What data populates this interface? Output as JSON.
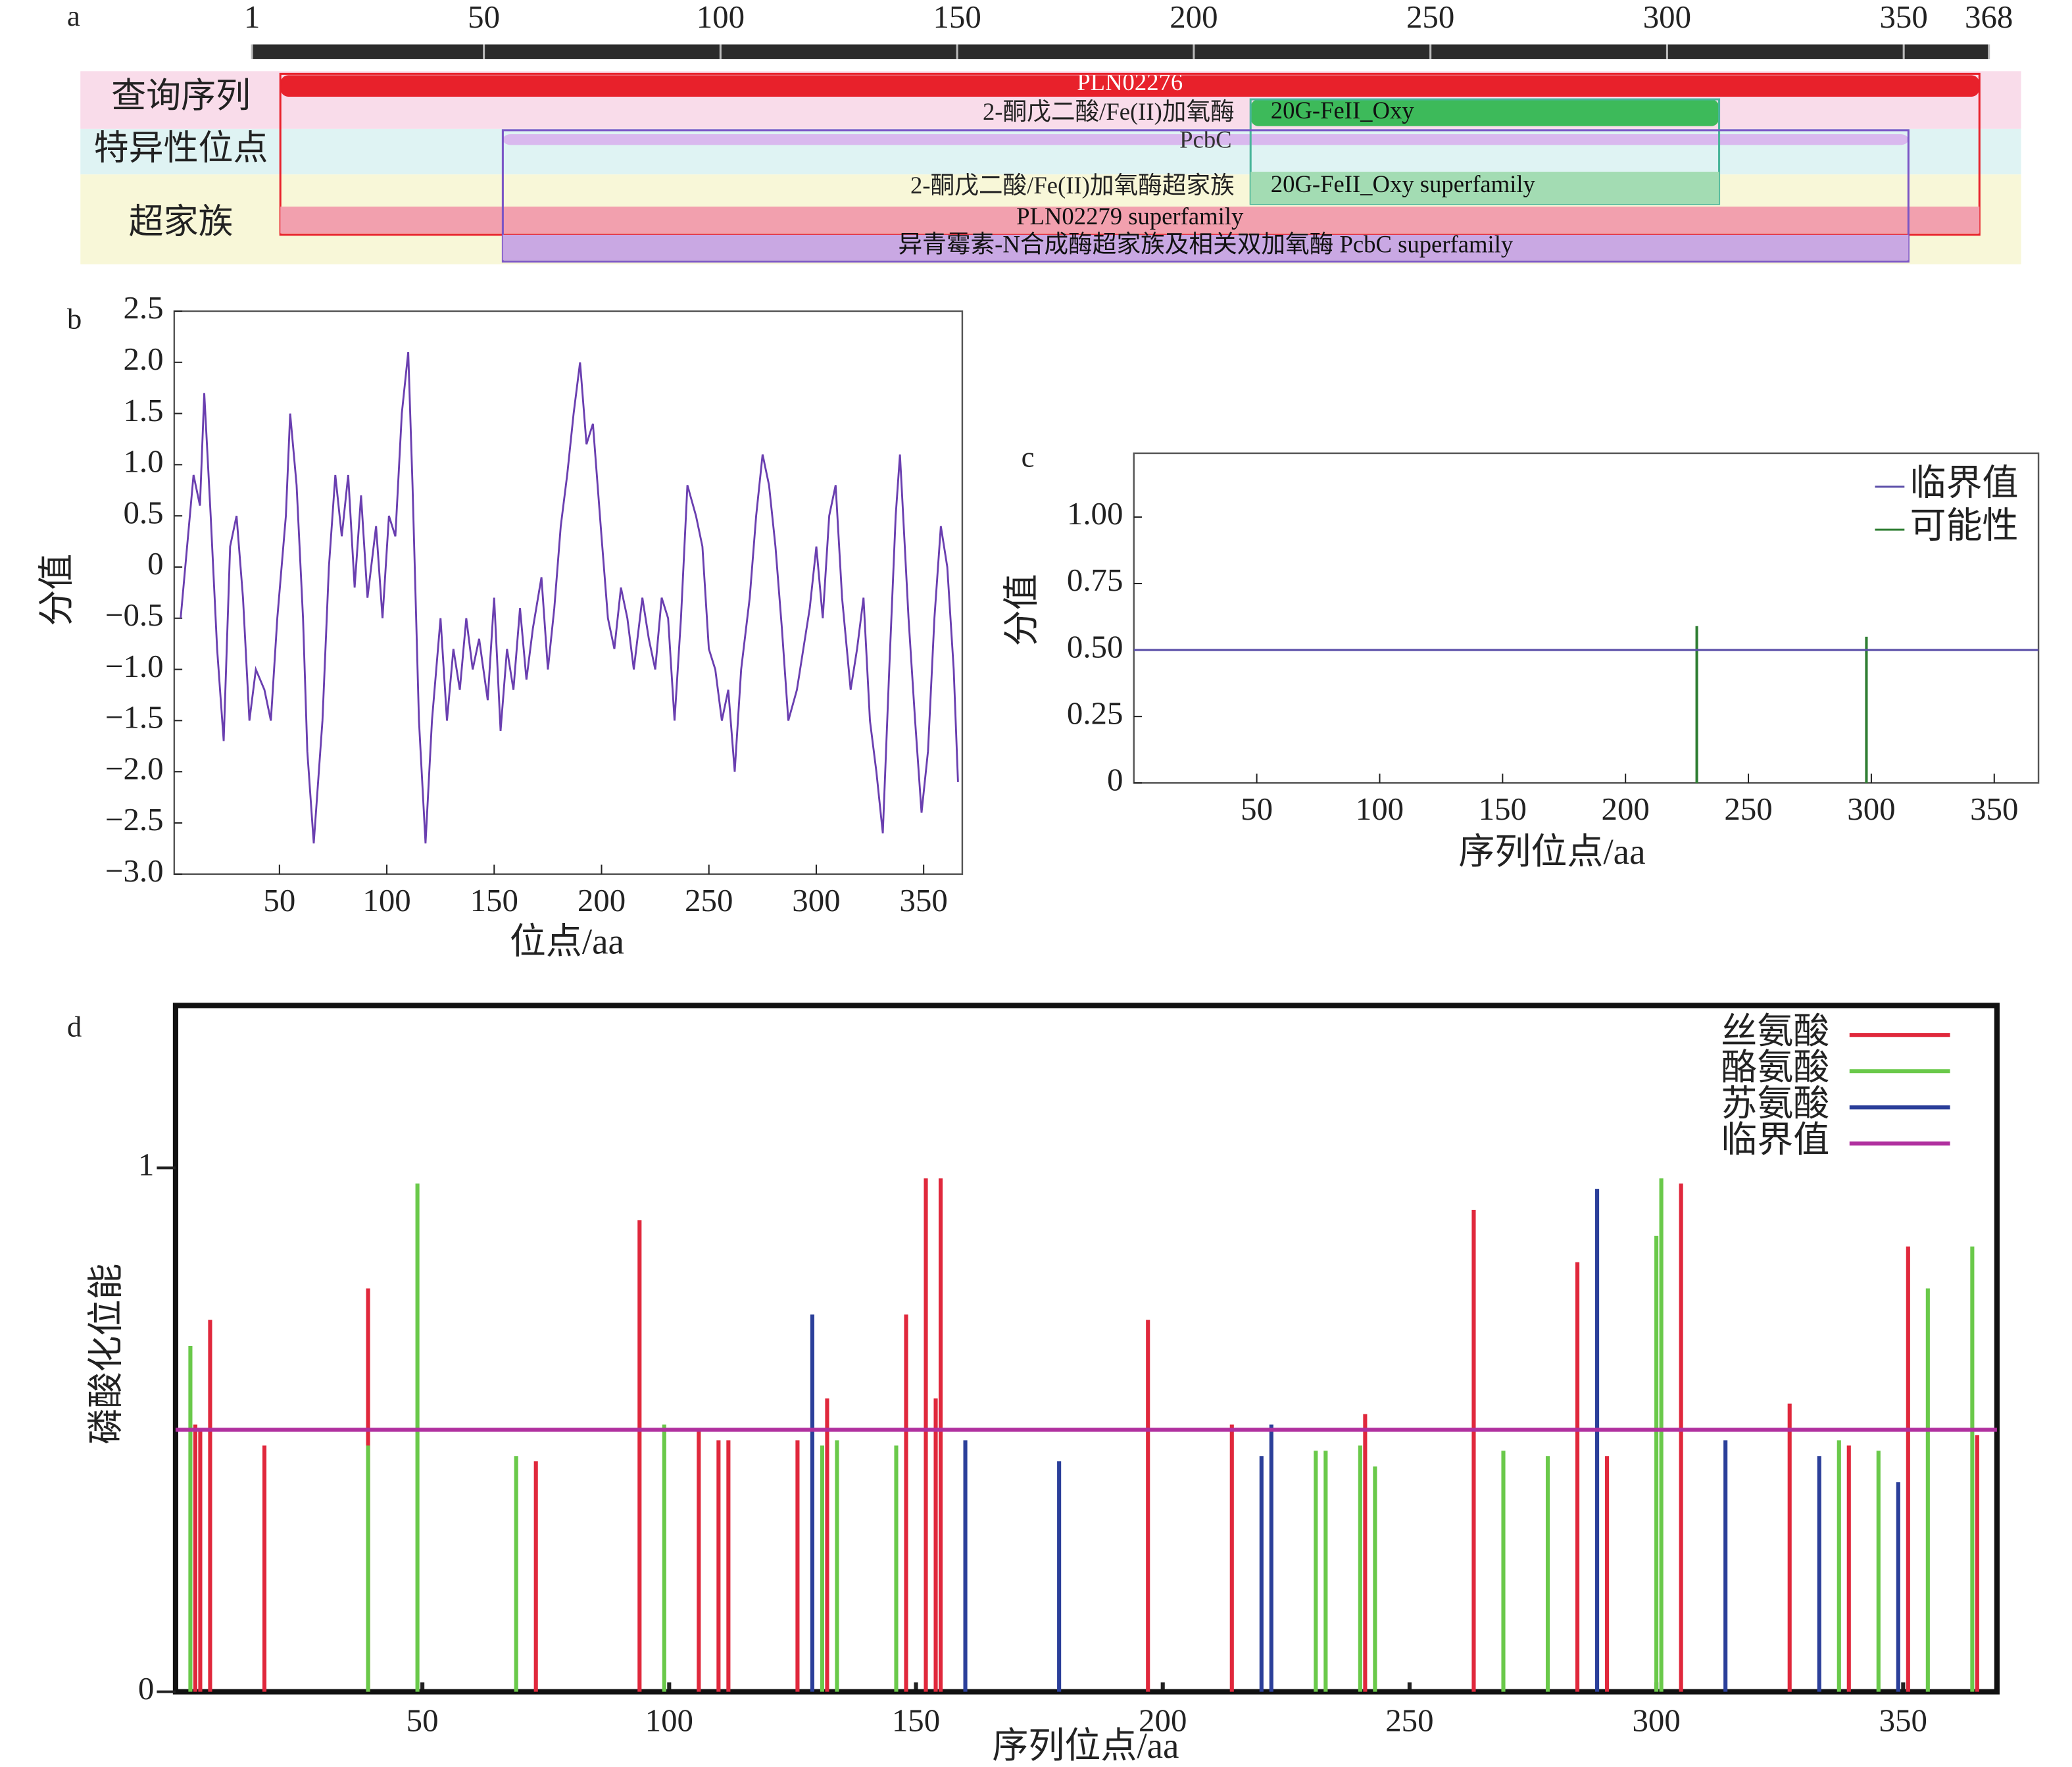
{
  "chart_data": [
    {
      "type": "domain",
      "label": "a",
      "xlim": [
        1,
        368
      ],
      "xticks": [
        1,
        50,
        100,
        150,
        200,
        250,
        300,
        350,
        368
      ],
      "rows": [
        "查询序列",
        "特异性位点",
        "超家族"
      ],
      "features": [
        {
          "name": "PLN02276",
          "start": 7,
          "end": 366,
          "color": "#e8212b"
        },
        {
          "name": "20G-FeII_Oxy",
          "description": "2-酮戊二酸/Fe(II)加氧酶",
          "start": 212,
          "end": 311,
          "color": "#3dba5a"
        },
        {
          "name": "PcbC",
          "start": 54,
          "end": 351,
          "color": "#d9b8ee"
        },
        {
          "name": "20G-FeII_Oxy superfamily",
          "description": "2-酮戊二酸/Fe(II)加氧酶超家族",
          "start": 212,
          "end": 311,
          "color": "#a3dcb3"
        },
        {
          "name": "PLN02279  superfamily",
          "start": 7,
          "end": 366,
          "color": "#f2a0ae"
        },
        {
          "name": "异青霉素-N合成酶超家族及相关双加氧酶  PcbC superfamily",
          "start": 54,
          "end": 351,
          "color": "#c9a8e3"
        }
      ]
    },
    {
      "type": "line",
      "label": "b",
      "xlabel": "位点/aa",
      "ylabel": "分值",
      "color": "#6a3fb0",
      "xlim": [
        1,
        368
      ],
      "ylim": [
        -3,
        2.5
      ],
      "xticks": [
        50,
        100,
        150,
        200,
        250,
        300,
        350
      ],
      "yticks": [
        2.5,
        {
          "value": 2,
          "label": "2.0"
        },
        1.5,
        {
          "value": 1,
          "label": "1.0"
        },
        0.5,
        0,
        {
          "value": -0.5,
          "label": "−0.5"
        },
        {
          "value": -1,
          "label": "−1.0"
        },
        {
          "value": -1.5,
          "label": "−1.5"
        },
        {
          "value": -2,
          "label": "−2.0"
        },
        {
          "value": -2.5,
          "label": "−2.5"
        },
        {
          "value": -3,
          "label": "−3.0"
        }
      ],
      "x": [
        4,
        10,
        13,
        15,
        18,
        21,
        24,
        27,
        30,
        33,
        36,
        39,
        43,
        46,
        49,
        53,
        55,
        58,
        61,
        63,
        66,
        70,
        73,
        76,
        79,
        82,
        85,
        88,
        91,
        95,
        98,
        101,
        104,
        107,
        110,
        112,
        115,
        118,
        121,
        125,
        128,
        131,
        134,
        137,
        140,
        143,
        147,
        150,
        153,
        156,
        159,
        162,
        165,
        168,
        172,
        175,
        178,
        181,
        184,
        187,
        190,
        193,
        196,
        200,
        203,
        206,
        209,
        212,
        215,
        219,
        222,
        225,
        228,
        231,
        234,
        237,
        240,
        244,
        247,
        250,
        253,
        256,
        259,
        262,
        265,
        269,
        272,
        275,
        278,
        281,
        284,
        287,
        291,
        294,
        297,
        300,
        303,
        306,
        309,
        312,
        316,
        319,
        322,
        325,
        328,
        331,
        334,
        337,
        339,
        343,
        346,
        349,
        352,
        355,
        358,
        361,
        364,
        366
      ],
      "values": [
        -0.5,
        0.9,
        0.6,
        1.7,
        0.5,
        -0.8,
        -1.7,
        0.2,
        0.5,
        -0.3,
        -1.5,
        -1.0,
        -1.2,
        -1.5,
        -0.5,
        0.5,
        1.5,
        0.8,
        -0.5,
        -1.8,
        -2.7,
        -1.5,
        0,
        0.9,
        0.3,
        0.9,
        -0.2,
        0.7,
        -0.3,
        0.4,
        -0.5,
        0.5,
        0.3,
        1.5,
        2.1,
        0.8,
        -1.5,
        -2.7,
        -1.5,
        -0.5,
        -1.5,
        -0.8,
        -1.2,
        -0.5,
        -1.0,
        -0.7,
        -1.3,
        -0.3,
        -1.6,
        -0.8,
        -1.2,
        -0.4,
        -1.1,
        -0.6,
        -0.1,
        -1.0,
        -0.4,
        0.4,
        0.9,
        1.5,
        2.0,
        1.2,
        1.4,
        0.3,
        -0.5,
        -0.8,
        -0.2,
        -0.5,
        -1.0,
        -0.3,
        -0.7,
        -1.0,
        -0.3,
        -0.5,
        -1.5,
        -0.5,
        0.8,
        0.5,
        0.2,
        -0.8,
        -1.0,
        -1.5,
        -1.2,
        -2.0,
        -1.0,
        -0.3,
        0.5,
        1.1,
        0.8,
        0.2,
        -0.6,
        -1.5,
        -1.2,
        -0.8,
        -0.4,
        0.2,
        -0.5,
        0.5,
        0.8,
        -0.3,
        -1.2,
        -0.8,
        -0.3,
        -1.5,
        -2.0,
        -2.6,
        -1.0,
        0.5,
        1.1,
        -0.5,
        -1.5,
        -2.4,
        -1.8,
        -0.5,
        0.4,
        0,
        -1.0,
        -2.1
      ]
    },
    {
      "type": "threshold",
      "label": "c",
      "xlabel": "序列位点/aa",
      "ylabel": "分值",
      "legend": "upper right",
      "xlim": [
        0,
        368
      ],
      "ylim": [
        0,
        1.24
      ],
      "xticks": [
        50,
        100,
        150,
        200,
        250,
        300,
        350
      ],
      "yticks": [
        {
          "value": 1,
          "label": "1.00"
        },
        0.75,
        {
          "value": 0.5,
          "label": "0.50"
        },
        0.25,
        0
      ],
      "series": [
        {
          "name": "临界值",
          "color": "#5b4ea8",
          "value": 0.5
        },
        {
          "name": "可能性",
          "color": "#2e7d32",
          "x": [
            229,
            298
          ],
          "values": [
            0.59,
            0.55
          ]
        }
      ]
    },
    {
      "type": "phospho",
      "label": "d",
      "xlabel": "序列位点/aa",
      "ylabel": "磷酸化位能",
      "legend": "upper right",
      "xlim": [
        0,
        369
      ],
      "ylim": [
        0,
        1.31
      ],
      "xticks": [
        50,
        100,
        150,
        200,
        250,
        300,
        350
      ],
      "yticks": [
        1,
        0
      ],
      "series": [
        {
          "name": "丝氨酸",
          "color": "#e0283c",
          "x": [
            4,
            5,
            7,
            18,
            39,
            73,
            94,
            106,
            110,
            112,
            126,
            132,
            148,
            152,
            154,
            155,
            197,
            214,
            241,
            263,
            284,
            290,
            305,
            327,
            339,
            351,
            365
          ],
          "values": [
            0.51,
            0.5,
            0.71,
            0.47,
            0.77,
            0.44,
            0.9,
            0.5,
            0.48,
            0.48,
            0.48,
            0.56,
            0.72,
            0.98,
            0.56,
            0.98,
            0.71,
            0.51,
            0.53,
            0.92,
            0.82,
            0.45,
            0.97,
            0.55,
            0.47,
            0.85,
            0.49
          ]
        },
        {
          "name": "酪氨酸",
          "color": "#6ac94a",
          "x": [
            3,
            39,
            49,
            69,
            99,
            131,
            134,
            146,
            231,
            233,
            240,
            243,
            269,
            278,
            300,
            301,
            337,
            345,
            355,
            364
          ],
          "values": [
            0.66,
            0.47,
            0.97,
            0.45,
            0.51,
            0.47,
            0.48,
            0.47,
            0.46,
            0.46,
            0.47,
            0.43,
            0.46,
            0.45,
            0.87,
            0.98,
            0.48,
            0.46,
            0.77,
            0.85
          ]
        },
        {
          "name": "苏氨酸",
          "color": "#2b3f9a",
          "x": [
            129,
            160,
            179,
            220,
            222,
            288,
            314,
            333,
            349
          ],
          "values": [
            0.72,
            0.48,
            0.44,
            0.45,
            0.51,
            0.96,
            0.48,
            0.45,
            0.4
          ]
        },
        {
          "name": "临界值",
          "color": "#b0309f",
          "value": 0.5
        }
      ]
    }
  ]
}
